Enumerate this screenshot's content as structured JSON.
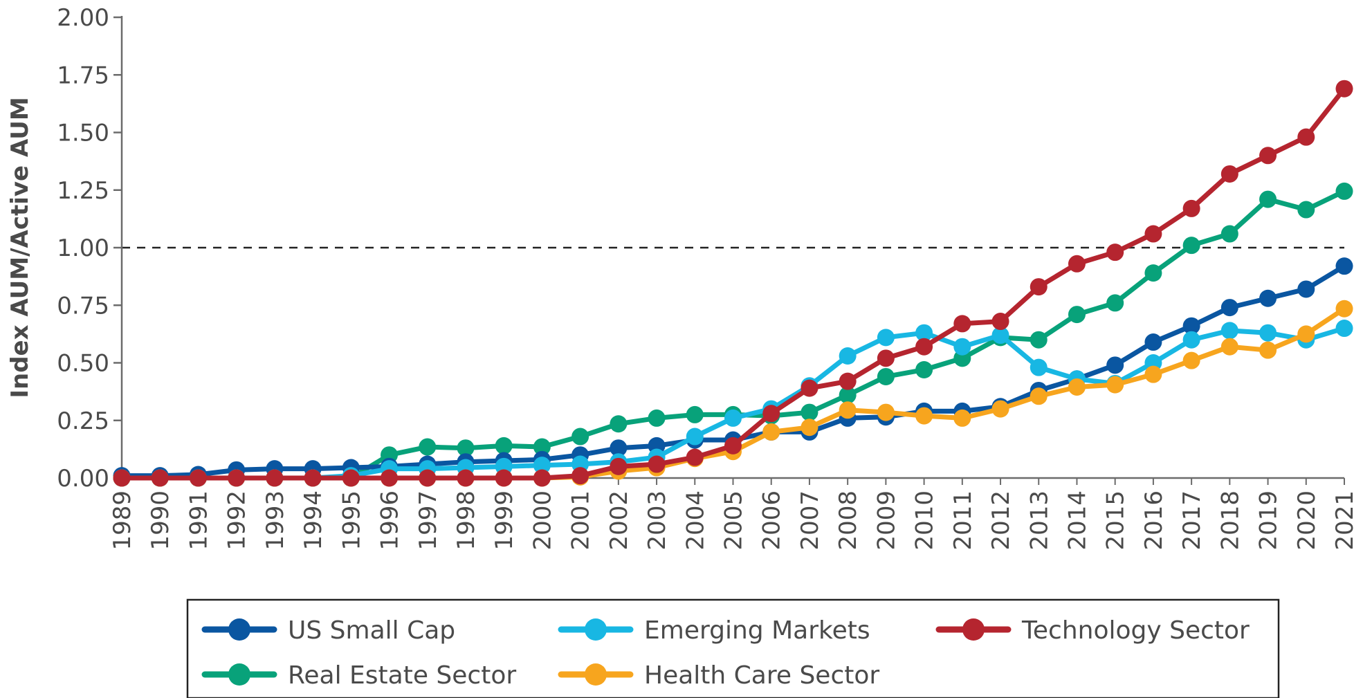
{
  "chart_data": {
    "type": "line",
    "ylabel": "Index AUM/Active AUM",
    "xlabel": "",
    "ylim": [
      0,
      2.0
    ],
    "yticks": [
      "0.00",
      "0.25",
      "0.50",
      "0.75",
      "1.00",
      "1.25",
      "1.50",
      "1.75",
      "2.00"
    ],
    "reference_line": 1.0,
    "grid": false,
    "legend_position": "bottom",
    "categories": [
      "1989",
      "1990",
      "1991",
      "1992",
      "1993",
      "1994",
      "1995",
      "1996",
      "1997",
      "1998",
      "1999",
      "2000",
      "2001",
      "2002",
      "2003",
      "2004",
      "2005",
      "2006",
      "2007",
      "2008",
      "2009",
      "2010",
      "2011",
      "2012",
      "2013",
      "2014",
      "2015",
      "2016",
      "2017",
      "2018",
      "2019",
      "2020",
      "2021"
    ],
    "series": [
      {
        "name": "US Small Cap",
        "color": "#0a56a1",
        "values": [
          0.01,
          0.01,
          0.015,
          0.035,
          0.04,
          0.04,
          0.045,
          0.05,
          0.06,
          0.07,
          0.075,
          0.08,
          0.1,
          0.13,
          0.14,
          0.165,
          0.165,
          0.2,
          0.2,
          0.26,
          0.265,
          0.29,
          0.29,
          0.31,
          0.38,
          0.43,
          0.49,
          0.59,
          0.66,
          0.74,
          0.78,
          0.82,
          0.92
        ]
      },
      {
        "name": "Emerging Markets",
        "color": "#18b7e3",
        "values": [
          0.0,
          0.0,
          0.0,
          0.0,
          0.0,
          0.0,
          0.01,
          0.04,
          0.04,
          0.045,
          0.05,
          0.055,
          0.06,
          0.07,
          0.09,
          0.18,
          0.26,
          0.3,
          0.4,
          0.53,
          0.61,
          0.63,
          0.57,
          0.62,
          0.48,
          0.43,
          0.41,
          0.5,
          0.6,
          0.64,
          0.63,
          0.6,
          0.65
        ]
      },
      {
        "name": "Technology Sector",
        "color": "#b5252f",
        "values": [
          0.0,
          0.0,
          0.0,
          0.0,
          0.0,
          0.0,
          0.0,
          0.0,
          0.0,
          0.0,
          0.0,
          0.0,
          0.01,
          0.05,
          0.06,
          0.09,
          0.14,
          0.28,
          0.39,
          0.42,
          0.52,
          0.57,
          0.67,
          0.68,
          0.83,
          0.93,
          0.98,
          1.06,
          1.17,
          1.32,
          1.4,
          1.48,
          1.69
        ]
      },
      {
        "name": "Real Estate Sector",
        "color": "#08a27a",
        "values": [
          0.0,
          0.0,
          0.0,
          0.0,
          0.0,
          0.0,
          0.0,
          0.1,
          0.135,
          0.13,
          0.14,
          0.135,
          0.18,
          0.235,
          0.26,
          0.275,
          0.275,
          0.27,
          0.285,
          0.36,
          0.44,
          0.47,
          0.52,
          0.61,
          0.6,
          0.71,
          0.76,
          0.89,
          1.01,
          1.06,
          1.21,
          1.165,
          1.245
        ]
      },
      {
        "name": "Health Care Sector",
        "color": "#f7a51e",
        "values": [
          0.0,
          0.0,
          0.0,
          0.0,
          0.0,
          0.0,
          0.0,
          0.0,
          0.0,
          0.0,
          0.0,
          0.0,
          0.005,
          0.03,
          0.045,
          0.085,
          0.115,
          0.2,
          0.22,
          0.295,
          0.285,
          0.27,
          0.26,
          0.3,
          0.355,
          0.395,
          0.405,
          0.45,
          0.51,
          0.57,
          0.555,
          0.625,
          0.735
        ]
      }
    ]
  }
}
